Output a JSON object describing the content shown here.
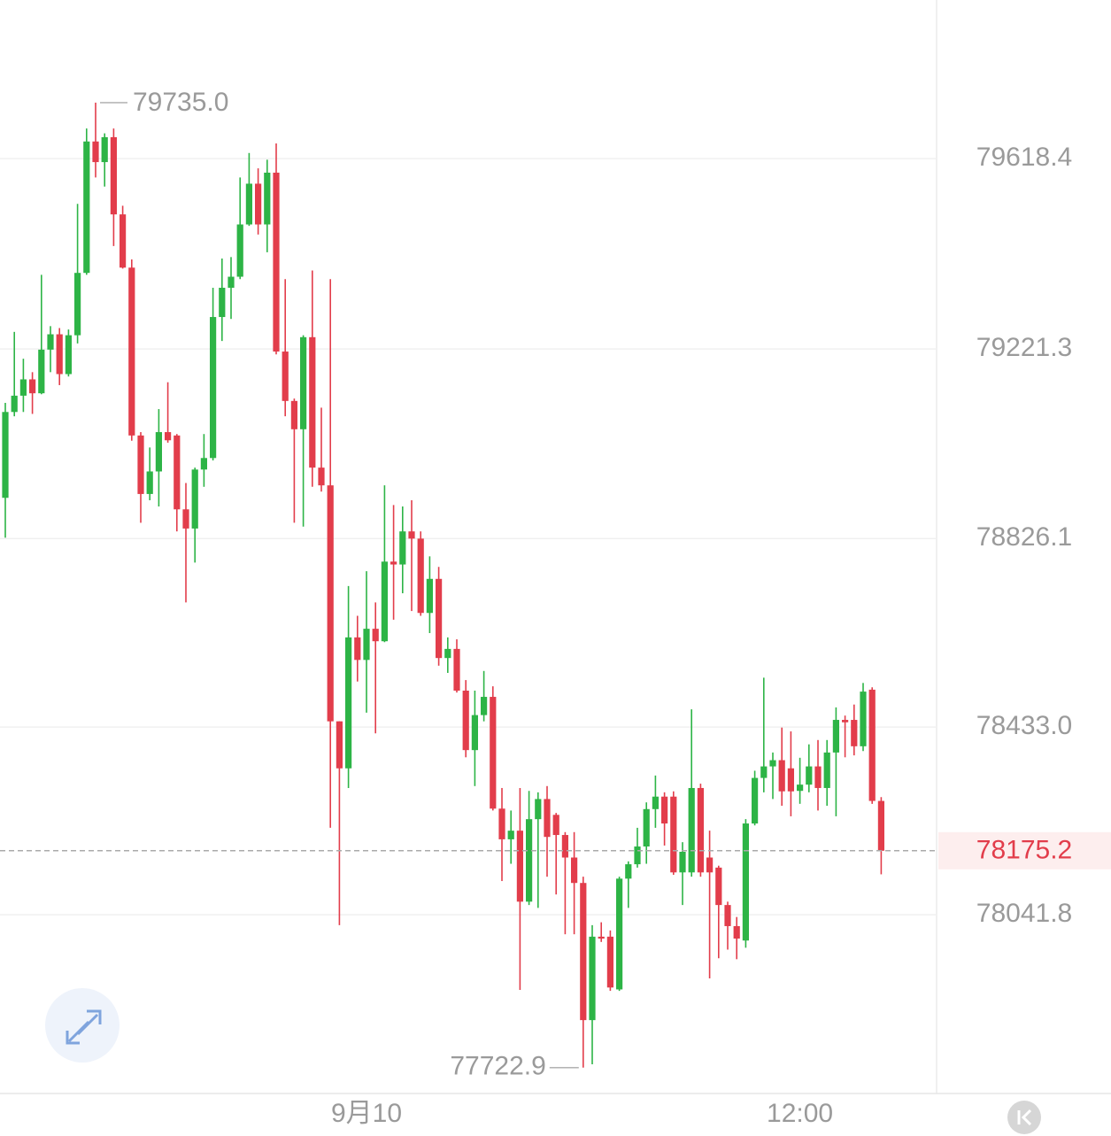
{
  "chart_data": {
    "type": "candlestick",
    "categories": [
      null,
      null,
      null,
      null,
      null,
      null,
      null,
      null,
      null,
      null,
      null,
      null,
      null,
      null,
      null,
      null,
      null,
      null,
      null,
      null,
      null,
      null,
      null,
      null,
      null,
      null,
      null,
      null,
      null,
      null,
      null,
      null,
      null,
      null,
      null,
      null,
      null,
      null,
      null,
      null,
      "9月10",
      null,
      null,
      null,
      null,
      null,
      null,
      null,
      null,
      null,
      null,
      null,
      null,
      null,
      null,
      null,
      null,
      null,
      null,
      null,
      null,
      null,
      null,
      null,
      null,
      null,
      null,
      null,
      null,
      null,
      null,
      null,
      null,
      null,
      null,
      null,
      null,
      null,
      null,
      null,
      null,
      null,
      null,
      null,
      null,
      null,
      null,
      null,
      "12:00",
      null,
      null,
      null,
      null,
      null,
      null,
      null,
      null,
      null
    ],
    "open": [
      78911,
      79090,
      79124,
      79158,
      79129,
      79220,
      79252,
      79169,
      79250,
      79380,
      79654,
      79611,
      79663,
      79502,
      79391,
      79041,
      78919,
      78966,
      79048,
      79041,
      78887,
      78847,
      78970,
      78994,
      79288,
      79349,
      79372,
      79481,
      79566,
      79481,
      79589,
      79216,
      79113,
      79054,
      79246,
      78974,
      78937,
      78445,
      78347,
      78620,
      78573,
      78638,
      78612,
      78778,
      78772,
      78841,
      78826,
      78671,
      78742,
      78577,
      78596,
      78509,
      78385,
      78458,
      78496,
      78263,
      78199,
      78217,
      78069,
      78241,
      78283,
      78250,
      78208,
      78161,
      78108,
      77822,
      77996,
      77996,
      77886,
      78117,
      78147,
      78184,
      78262,
      78288,
      78288,
      78130,
      78130,
      78306,
      78161,
      78140,
      78062,
      78018,
      77988,
      78232,
      78327,
      78351,
      78364,
      78347,
      78300,
      78313,
      78351,
      78306,
      78380,
      78448,
      78448,
      78393,
      78511,
      78279
    ],
    "high": [
      79109,
      79257,
      79201,
      79173,
      79376,
      79269,
      79265,
      79262,
      79524,
      79681,
      79735,
      79671,
      79681,
      79520,
      79408,
      79048,
      79016,
      79096,
      79152,
      79044,
      78942,
      78974,
      79044,
      79349,
      79410,
      79413,
      79579,
      79630,
      79598,
      79616,
      79650,
      79367,
      79118,
      79250,
      79385,
      79099,
      79367,
      78445,
      78727,
      78665,
      78758,
      78693,
      78937,
      78896,
      78893,
      78906,
      78841,
      78789,
      78767,
      78620,
      78616,
      78531,
      78509,
      78550,
      78518,
      78306,
      78259,
      78306,
      78300,
      78297,
      78310,
      78254,
      78214,
      78214,
      78121,
      78020,
      78026,
      78009,
      78121,
      78153,
      78223,
      78276,
      78332,
      78297,
      78299,
      78193,
      78470,
      78315,
      78217,
      78144,
      78069,
      78037,
      78241,
      78342,
      78536,
      78380,
      78432,
      78424,
      78369,
      78397,
      78406,
      78406,
      78474,
      78457,
      78480,
      78525,
      78516,
      78287
    ],
    "low": [
      78828,
      79081,
      79090,
      79086,
      79127,
      79173,
      79146,
      79164,
      79233,
      79376,
      79579,
      79560,
      79436,
      79389,
      79030,
      78859,
      78906,
      78893,
      79026,
      78841,
      78693,
      78776,
      78934,
      78989,
      79238,
      79284,
      79367,
      79478,
      79460,
      79423,
      79210,
      79081,
      78859,
      78851,
      78934,
      78924,
      78223,
      78020,
      78306,
      78528,
      78463,
      78420,
      78610,
      78657,
      78712,
      78675,
      78665,
      78629,
      78561,
      78546,
      78505,
      78370,
      78310,
      78445,
      78259,
      78112,
      78148,
      77885,
      78062,
      78056,
      78121,
      78084,
      78001,
      78001,
      77722.9,
      77730,
      77985,
      77883,
      77883,
      78056,
      78140,
      78148,
      78223,
      78186,
      78125,
      78062,
      78121,
      78121,
      77909,
      77951,
      77969,
      77949,
      77973,
      78228,
      78297,
      78283,
      78269,
      78247,
      78273,
      78297,
      78259,
      78269,
      78247,
      78370,
      78374,
      78383,
      78273,
      78126
    ],
    "close": [
      79090,
      79124,
      79158,
      79129,
      79220,
      79252,
      79169,
      79250,
      79380,
      79654,
      79611,
      79663,
      79502,
      79391,
      79041,
      78919,
      78966,
      79048,
      79031,
      78887,
      78847,
      78970,
      78994,
      79288,
      79349,
      79372,
      79481,
      79566,
      79481,
      79589,
      79216,
      79113,
      79054,
      79246,
      78974,
      78937,
      78445,
      78347,
      78620,
      78573,
      78638,
      78612,
      78778,
      78772,
      78841,
      78826,
      78671,
      78742,
      78577,
      78596,
      78509,
      78385,
      78458,
      78496,
      78263,
      78199,
      78217,
      78069,
      78241,
      78283,
      78204,
      78208,
      78161,
      78108,
      77822,
      77996,
      77992,
      77890,
      78117,
      78147,
      78184,
      78262,
      78288,
      78232,
      78130,
      78173,
      78306,
      78130,
      78130,
      78062,
      78018,
      77992,
      78232,
      78327,
      78351,
      78364,
      78299,
      78299,
      78313,
      78351,
      78306,
      78380,
      78448,
      78443,
      78393,
      78507,
      78279,
      78175.2
    ],
    "up_color": "#2db446",
    "down_color": "#e23d4b",
    "max_label": "79735.0",
    "min_label": "77722.9",
    "ylim": [
      77669,
      79949
    ],
    "yticks": [
      79618.4,
      79221.3,
      78826.1,
      {
        "value": 78433.0,
        "label": "78433.0"
      },
      78041.8
    ],
    "grid": true
  }
}
